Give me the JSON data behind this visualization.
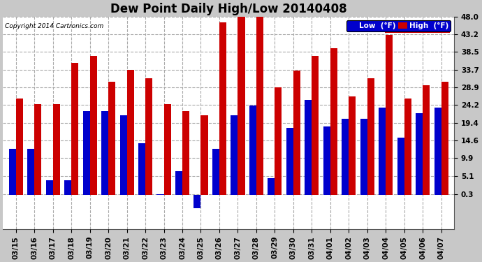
{
  "title": "Dew Point Daily High/Low 20140408",
  "copyright": "Copyright 2014 Cartronics.com",
  "legend_low": "Low  (°F)",
  "legend_high": "High  (°F)",
  "dates": [
    "03/15",
    "03/16",
    "03/17",
    "03/18",
    "03/19",
    "03/20",
    "03/21",
    "03/22",
    "03/23",
    "03/24",
    "03/25",
    "03/26",
    "03/27",
    "03/28",
    "03/29",
    "03/30",
    "03/31",
    "04/01",
    "04/02",
    "04/03",
    "04/04",
    "04/05",
    "04/06",
    "04/07"
  ],
  "high": [
    26.0,
    24.5,
    24.5,
    35.5,
    37.5,
    30.5,
    33.7,
    31.5,
    24.5,
    22.5,
    21.5,
    46.5,
    48.0,
    48.0,
    28.9,
    33.5,
    37.5,
    39.5,
    26.5,
    31.5,
    43.0,
    26.0,
    29.5,
    30.5
  ],
  "low": [
    12.5,
    12.5,
    4.0,
    4.0,
    22.5,
    22.5,
    21.5,
    14.0,
    0.3,
    6.5,
    -3.5,
    12.5,
    21.5,
    24.0,
    4.5,
    18.0,
    25.5,
    18.5,
    20.5,
    20.5,
    23.5,
    15.5,
    22.0,
    23.5
  ],
  "ylim": [
    -9.2,
    48.0
  ],
  "yticks": [
    0.3,
    5.1,
    9.9,
    14.6,
    19.4,
    24.2,
    28.9,
    33.7,
    38.5,
    43.2,
    48.0
  ],
  "ytick_labels": [
    "0.3",
    "5.1",
    "9.9",
    "14.6",
    "19.4",
    "24.2",
    "28.9",
    "33.7",
    "38.5",
    "43.2",
    "48.0"
  ],
  "low_color": "#0000cc",
  "high_color": "#cc0000",
  "bg_color": "#c8c8c8",
  "plot_bg_color": "#ffffff",
  "grid_color": "#aaaaaa",
  "title_fontsize": 12,
  "tick_fontsize": 7.5,
  "bar_width": 0.38
}
